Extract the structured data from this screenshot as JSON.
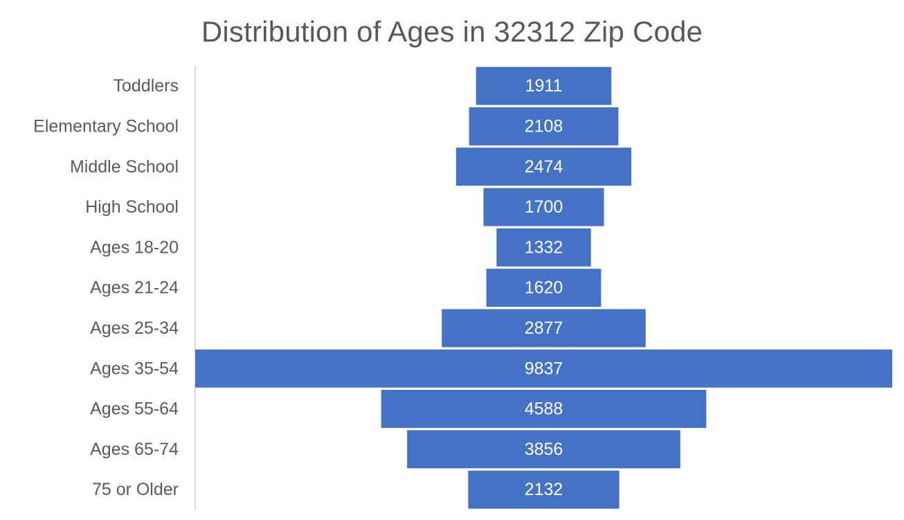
{
  "chart_data": {
    "type": "bar",
    "orientation": "horizontal",
    "style": "centered population pyramid (funnel)",
    "title": "Distribution of Ages in 32312 Zip Code",
    "categories": [
      "Toddlers",
      "Elementary School",
      "Middle School",
      "High School",
      "Ages 18-20",
      "Ages 21-24",
      "Ages 25-34",
      "Ages 35-54",
      "Ages 55-64",
      "Ages 65-74",
      "75 or Older"
    ],
    "values": [
      1911,
      2108,
      2474,
      1700,
      1332,
      1620,
      2877,
      9837,
      4588,
      3856,
      2132
    ],
    "data_labels": [
      "1911",
      "2108",
      "2474",
      "1700",
      "1332",
      "1620",
      "2877",
      "9837",
      "4588",
      "3856",
      "2132"
    ],
    "xlabel": "",
    "ylabel": "",
    "grid": false,
    "legend": "none",
    "bar_color": "#4472C4",
    "axis_color": "#D9D9D9",
    "text_color": "#595959"
  }
}
